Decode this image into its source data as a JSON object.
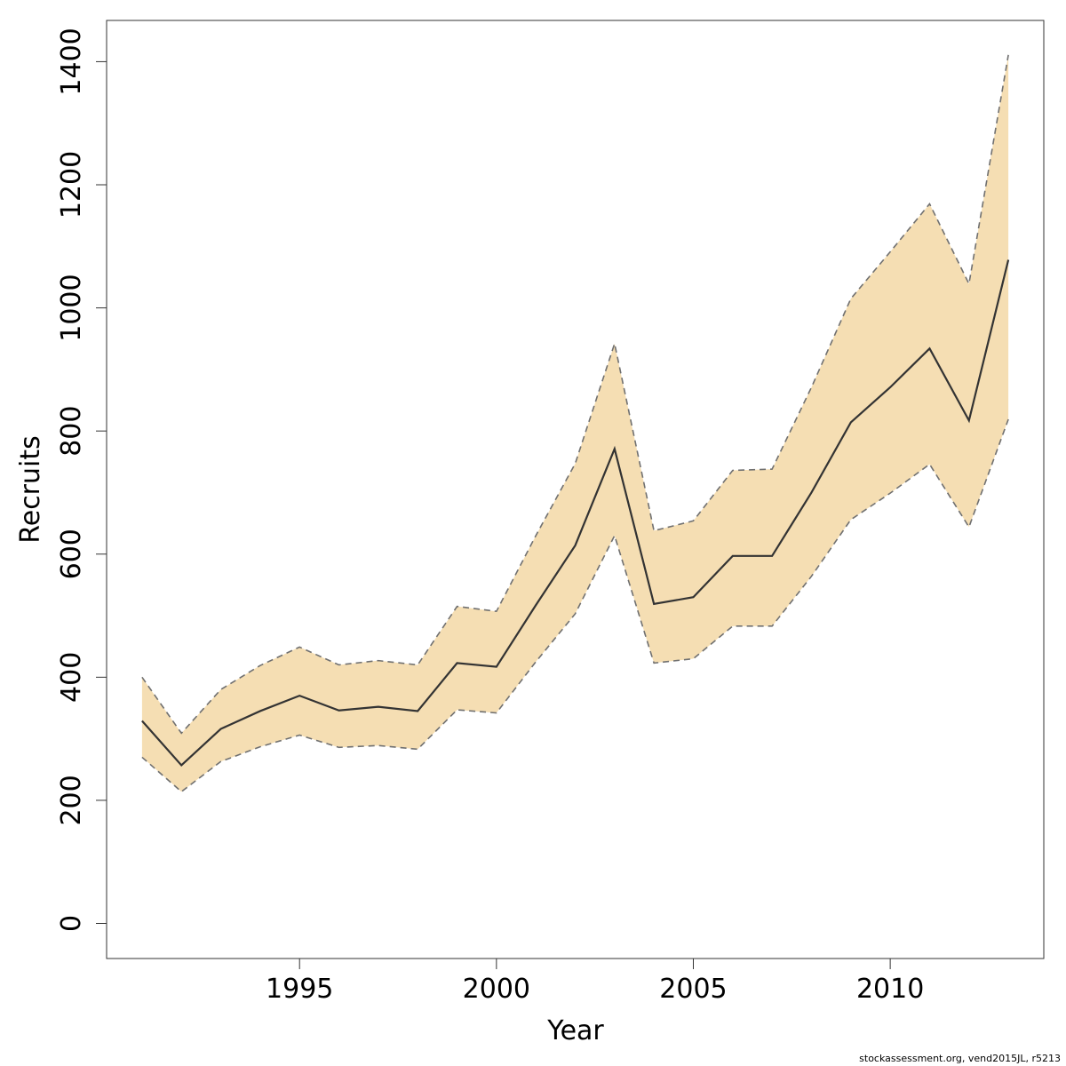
{
  "chart_data": {
    "type": "line",
    "title": "",
    "xlabel": "Year",
    "ylabel": "Recruits",
    "xlim": [
      1990.1,
      2013.9
    ],
    "ylim": [
      -57,
      1467
    ],
    "x_ticks": [
      1995,
      2000,
      2005,
      2010
    ],
    "y_ticks": [
      0,
      200,
      400,
      600,
      800,
      1000,
      1200,
      1400
    ],
    "x": [
      1991,
      1992,
      1993,
      1994,
      1995,
      1996,
      1997,
      1998,
      1999,
      2000,
      2001,
      2002,
      2003,
      2004,
      2005,
      2006,
      2007,
      2008,
      2009,
      2010,
      2011,
      2012,
      2013
    ],
    "series": [
      {
        "role": "estimate",
        "style": "solid",
        "color": "#333333",
        "values": [
          329,
          257,
          316,
          345,
          370,
          346,
          352,
          345,
          423,
          417,
          517,
          614,
          771,
          519,
          530,
          597,
          597,
          700,
          814,
          871,
          934,
          817,
          1078
        ]
      },
      {
        "role": "upper",
        "style": "dashed",
        "color": "#707070",
        "values": [
          400,
          309,
          380,
          419,
          449,
          420,
          427,
          420,
          515,
          507,
          630,
          747,
          942,
          638,
          654,
          736,
          738,
          871,
          1015,
          1091,
          1169,
          1039,
          1411
        ]
      },
      {
        "role": "lower",
        "style": "dashed",
        "color": "#707070",
        "values": [
          270,
          214,
          263,
          287,
          306,
          286,
          289,
          283,
          347,
          342,
          425,
          503,
          630,
          423,
          430,
          483,
          483,
          564,
          656,
          699,
          746,
          644,
          819
        ]
      }
    ],
    "band_color": "#f5deb3",
    "grid": false,
    "legend": "none"
  },
  "footer": {
    "text": "stockassessment.org, vend2015JL, r5213"
  }
}
